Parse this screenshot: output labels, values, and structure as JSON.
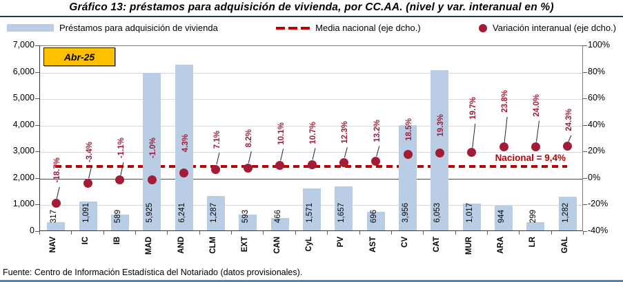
{
  "page": {
    "title": "Gráfico 13: préstamos para adquisición de vivienda, por CC.AA. (nivel y var. interanual en %)",
    "footer": "Fuente: Centro de Información Estadística del Notariado (datos provisionales)."
  },
  "badge": "Abr-25",
  "legend": {
    "bars": "Préstamos para adquisición de vivienda",
    "dash": "Media nacional (eje dcho.)",
    "dots": "Variación interanual (eje dcho.)"
  },
  "national": {
    "label": "Nacional = 9,4%",
    "value_pct": 9.4
  },
  "colors": {
    "bar": "#B9CDE5",
    "dot": "#A21C35",
    "dash_line": "#C00000",
    "grid": "#D9D9D9",
    "axis": "#595959",
    "badge_bg": "#FFC000",
    "title_rule": "#1F3864",
    "footer_rule": "#4F81BD"
  },
  "chart_data": {
    "type": "bar",
    "title": "Gráfico 13: préstamos para adquisición de vivienda, por CC.AA. (nivel y var. interanual en %)",
    "period": "Abr-25",
    "categories": [
      "NAV",
      "IC",
      "IB",
      "MAD",
      "AND",
      "CLM",
      "EXT",
      "CAN",
      "CyL",
      "PV",
      "AST",
      "CV",
      "CAT",
      "MUR",
      "ARA",
      "LR",
      "GAL"
    ],
    "series": [
      {
        "name": "Préstamos para adquisición de vivienda",
        "type": "bar",
        "axis": "left",
        "values": [
          317,
          1091,
          589,
          5925,
          6241,
          1287,
          593,
          466,
          1571,
          1657,
          696,
          3956,
          6053,
          1017,
          944,
          299,
          1282
        ],
        "value_labels": [
          "317",
          "1,091",
          "589",
          "5,925",
          "6,241",
          "1,287",
          "593",
          "466",
          "1,571",
          "1,657",
          "696",
          "3,956",
          "6,053",
          "1,017",
          "944",
          "299",
          "1,282"
        ]
      },
      {
        "name": "Variación interanual (eje dcho.)",
        "type": "scatter",
        "axis": "right",
        "values": [
          -18.7,
          -3.4,
          -1.1,
          -1.0,
          4.3,
          7.1,
          8.2,
          10.1,
          10.7,
          12.3,
          13.2,
          18.5,
          19.3,
          19.7,
          23.8,
          24.0,
          24.3
        ],
        "value_labels": [
          "-18.7%",
          "-3.4%",
          "-1.1%",
          "-1.0%",
          "4.3%",
          "7.1%",
          "8.2%",
          "10.1%",
          "10.7%",
          "12.3%",
          "13.2%",
          "18.5%",
          "19.3%",
          "19.7%",
          "23.8%",
          "24.0%",
          "24.3%"
        ]
      },
      {
        "name": "Media nacional (eje dcho.)",
        "type": "dashed-line",
        "axis": "right",
        "value": 9.4
      }
    ],
    "left_axis": {
      "min": 0,
      "max": 7000,
      "tick_labels": [
        "7,000",
        "6,000",
        "5,000",
        "4,000",
        "3,000",
        "2,000",
        "1,000",
        "0"
      ]
    },
    "right_axis": {
      "min": -40,
      "max": 100,
      "tick_labels": [
        "100%",
        "80%",
        "60%",
        "40%",
        "20%",
        "0%",
        "-20%",
        "-40%"
      ]
    },
    "layout": {
      "grid": true,
      "legend_position": "top",
      "pct_label_gaps": [
        18,
        18,
        20,
        20,
        18,
        18,
        18,
        18,
        18,
        16,
        16,
        8,
        12,
        36,
        38,
        32,
        10
      ]
    }
  }
}
